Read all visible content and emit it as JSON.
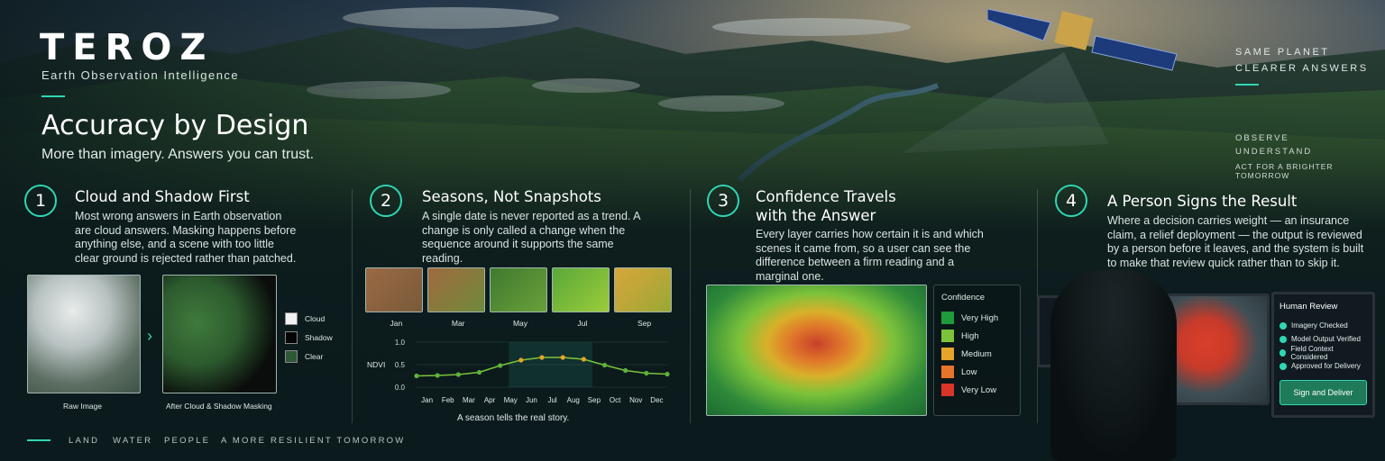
{
  "brand": {
    "logo": "TEROZ",
    "tagline": "Earth Observation Intelligence"
  },
  "hero": {
    "title": "Accuracy by Design",
    "subtitle": "More than imagery. Answers you can trust."
  },
  "right_top": {
    "line1": "SAME PLANET",
    "line2": "CLEARER ANSWERS",
    "items": [
      "OBSERVE",
      "UNDERSTAND",
      "ACT FOR A BRIGHTER TOMORROW"
    ]
  },
  "panels": [
    {
      "num": "1",
      "title": "Cloud and Shadow First",
      "body": "Most wrong answers in Earth observation are cloud answers. Masking happens before anything else, and a scene with too little clear ground is rejected rather than patched.",
      "raw_caption": "Raw Image",
      "masked_caption": "After Cloud & Shadow Masking",
      "legend": [
        "Cloud",
        "Shadow",
        "Clear"
      ]
    },
    {
      "num": "2",
      "title": "Seasons, Not Snapshots",
      "body": "A single date is never reported as a trend. A change is only called a change when the sequence around it supports the same reading.",
      "months": [
        "Jan",
        "Mar",
        "May",
        "Jul",
        "Sep"
      ],
      "caption": "A season tells the real story."
    },
    {
      "num": "3",
      "title_l1": "Confidence Travels",
      "title_l2": "with the Answer",
      "body": "Every layer carries how certain it is and which scenes it came from, so a user can see the difference between a firm reading and a marginal one.",
      "legend_title": "Confidence",
      "legend": [
        "Very High",
        "High",
        "Medium",
        "Low",
        "Very Low"
      ]
    },
    {
      "num": "4",
      "title": "A Person Signs the Result",
      "body": "Where a decision carries weight — an insurance claim, a relief deployment — the output is reviewed by a person before it leaves, and the system is built to make that review quick rather than to skip it.",
      "review_title": "Human Review",
      "review_items": [
        "Imagery Checked",
        "Model Output Verified",
        "Field Context Considered",
        "Approved for Delivery"
      ],
      "button": "Sign and Deliver"
    }
  ],
  "chart_data": {
    "type": "line",
    "title": "",
    "ylabel": "NDVI",
    "xlabel": "",
    "categories": [
      "Jan",
      "Feb",
      "Mar",
      "Apr",
      "May",
      "Jun",
      "Jul",
      "Aug",
      "Sep",
      "Oct",
      "Nov",
      "Dec"
    ],
    "values": [
      0.25,
      0.26,
      0.28,
      0.33,
      0.48,
      0.6,
      0.66,
      0.66,
      0.62,
      0.49,
      0.37,
      0.31,
      0.29
    ],
    "x": [
      1,
      2,
      3,
      4,
      5,
      6,
      7,
      8,
      9,
      10,
      11,
      12,
      13
    ],
    "ylim": [
      0,
      1
    ],
    "yticks": [
      "0.0",
      "0.5",
      "1.0"
    ],
    "highlight": "May–Aug"
  },
  "footer": [
    "LAND",
    "WATER",
    "PEOPLE",
    "A MORE RESILIENT TOMORROW"
  ],
  "colors": {
    "accent": "#2fd6b3",
    "very_high": "#1f9a3d",
    "high": "#7cc23a",
    "medium": "#e6a42a",
    "low": "#e8742a",
    "very_low": "#d9352a"
  }
}
